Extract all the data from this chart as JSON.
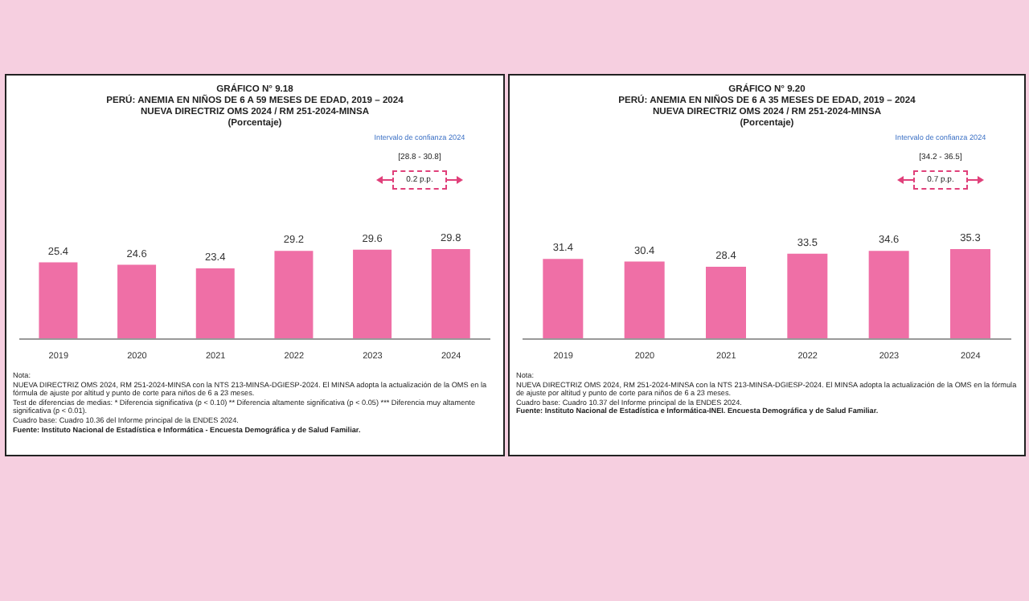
{
  "chart_data": [
    {
      "type": "bar",
      "title": "GRÁFICO N° 9.18",
      "subtitle": "PERÚ: ANEMIA EN NIÑOS DE 6 A 59 MESES DE EDAD, 2019 – 2024\nNUEVA DIRECTRIZ OMS 2024 / RM 251-2024-MINSA\n(Porcentaje)",
      "categories": [
        "2019",
        "2020",
        "2021",
        "2022",
        "2023",
        "2024"
      ],
      "series": [
        {
          "color": "#ef6fa6",
          "values": [
            25.4,
            24.6,
            23.4,
            29.2,
            29.6,
            29.8
          ]
        }
      ],
      "data_labels": true,
      "grid": false,
      "legend": false,
      "annotations": [
        "Intervalo de confianza 2024",
        "[28.8 - 30.8]",
        "0.2 p.p.",
        "Nota:\nNUEVA DIRECTRIZ OMS 2024, RM 251-2024-MINSA con la NTS 213-MINSA-DGIESP-2024. El MINSA adopta la actualización de la OMS en la fórmula de ajuste por altitud y punto de corte para niños de 6 a 23 meses.\nTest de diferencias de medias: * Diferencia significativa (p < 0.10) ** Diferencia altamente significativa (p < 0.05) *** Diferencia muy altamente significativa (p < 0.01).\nCuadro base: Cuadro 10.36 del Informe principal de la ENDES 2024.",
        "Fuente: Instituto Nacional de Estadística e Informática - Encuesta Demográfica y de Salud Familiar."
      ]
    },
    {
      "type": "bar",
      "title": "GRÁFICO N° 9.20",
      "subtitle": "PERÚ: ANEMIA EN NIÑOS DE 6 A 35 MESES DE EDAD, 2019 – 2024\nNUEVA DIRECTRIZ OMS 2024 / RM 251-2024-MINSA\n(Porcentaje)",
      "categories": [
        "2019",
        "2020",
        "2021",
        "2022",
        "2023",
        "2024"
      ],
      "series": [
        {
          "color": "#ef6fa6",
          "values": [
            31.4,
            30.4,
            28.4,
            33.5,
            34.6,
            35.3
          ]
        }
      ],
      "data_labels": true,
      "grid": false,
      "legend": false,
      "annotations": [
        "Intervalo de confianza 2024",
        "[34.2 - 36.5]",
        "0.7 p.p.",
        "Nota:\nNUEVA DIRECTRIZ OMS 2024, RM 251-2024-MINSA con la NTS 213-MINSA-DGIESP-2024. El MINSA adopta la actualización de la OMS en la fórmula de ajuste por altitud y punto de corte para niños de 6 a 23 meses.\nCuadro base: Cuadro 10.37 del Informe principal de la ENDES 2024.",
        "Fuente: Instituto Nacional de Estadística e Informática-INEI. Encuesta Demográfica y de Salud Familiar."
      ]
    }
  ]
}
